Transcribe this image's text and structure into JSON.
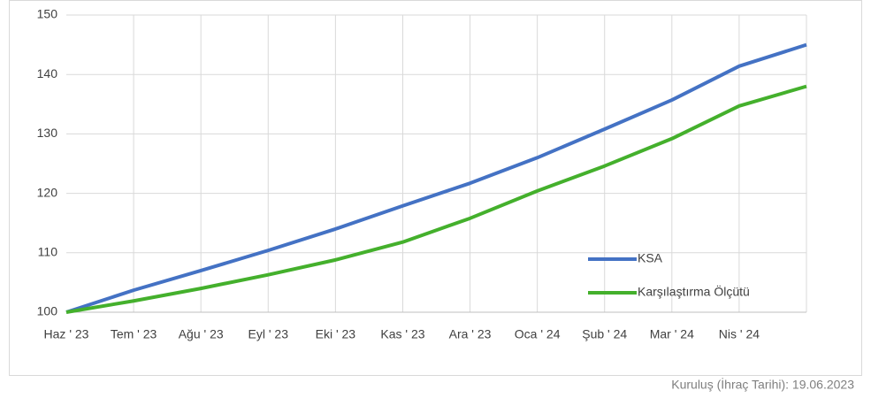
{
  "chart_data": {
    "type": "line",
    "categories": [
      "Haz ' 23",
      "Tem ' 23",
      "Ağu ' 23",
      "Eyl ' 23",
      "Eki ' 23",
      "Kas ' 23",
      "Ara ' 23",
      "Oca ' 24",
      "Şub ' 24",
      "Mar ' 24",
      "Nis ' 24",
      null
    ],
    "series": [
      {
        "name": "KSA",
        "color": "#4472c4",
        "values": [
          100,
          103.7,
          107.0,
          110.4,
          114.0,
          117.9,
          121.7,
          126.0,
          130.8,
          135.7,
          141.4,
          145
        ]
      },
      {
        "name": "Karşılaştırma Ölçütü",
        "color": "#44b02c",
        "values": [
          100,
          101.9,
          104.0,
          106.3,
          108.8,
          111.8,
          115.8,
          120.4,
          124.6,
          129.2,
          134.7,
          138
        ]
      }
    ],
    "ylim": [
      100,
      150
    ],
    "yticks": [
      100,
      110,
      120,
      130,
      140,
      150
    ],
    "grid": true,
    "legend": "bottom-right",
    "footnote": "Kuruluş (İhraç Tarihi): 19.06.2023"
  }
}
